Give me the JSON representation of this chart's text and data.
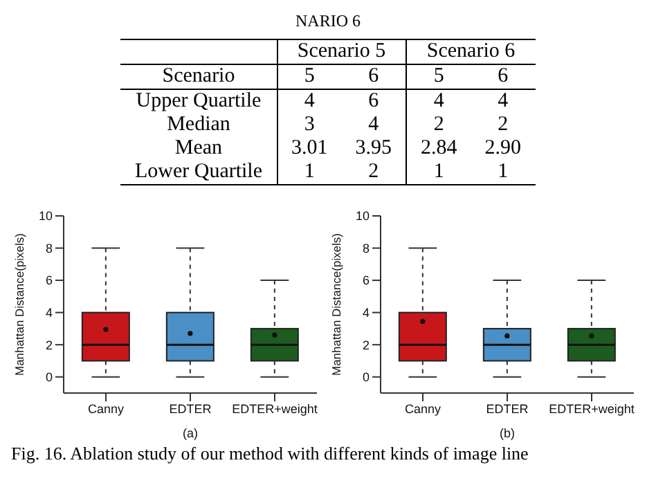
{
  "chart_data": [
    {
      "type": "other",
      "title": "NARIO 6",
      "annotations": [
        "Scenario 5",
        "Scenario 6",
        "Scenario"
      ],
      "categories": [
        "5",
        "6",
        "5",
        "6"
      ],
      "y_categories": [
        "Upper Quartile",
        "Median",
        "Mean",
        "Lower Quartile"
      ],
      "cell_labels": [
        [
          "4",
          "6",
          "4",
          "4"
        ],
        [
          "3",
          "4",
          "2",
          "2"
        ],
        [
          "3.01",
          "3.95",
          "2.84",
          "2.90"
        ],
        [
          "1",
          "2",
          "1",
          "1"
        ]
      ]
    },
    {
      "type": "box",
      "categories": [
        "Canny",
        "EDTER",
        "EDTER+weight"
      ],
      "colors": [
        "#c8171b",
        "#4a8fc6",
        "#1d5c20"
      ],
      "ylabel": "Manhattan Distance(pixels)",
      "xlabel": "(a)",
      "ylim": [
        -1,
        10
      ],
      "yticks": [
        0,
        2,
        4,
        6,
        8,
        10
      ],
      "grid": false,
      "boxes": [
        {
          "low": 0,
          "q1": 1,
          "median": 2,
          "q3": 4,
          "high": 8,
          "mean": 2.95
        },
        {
          "low": 0,
          "q1": 1,
          "median": 2,
          "q3": 4,
          "high": 8,
          "mean": 2.7
        },
        {
          "low": 0,
          "q1": 1,
          "median": 2,
          "q3": 3,
          "high": 6,
          "mean": 2.6
        }
      ]
    },
    {
      "type": "box",
      "categories": [
        "Canny",
        "EDTER",
        "EDTER+weight"
      ],
      "colors": [
        "#c8171b",
        "#4a8fc6",
        "#1d5c20"
      ],
      "ylabel": "Manhattan Distance(pixels)",
      "xlabel": "(b)",
      "ylim": [
        -1,
        10
      ],
      "yticks": [
        0,
        2,
        4,
        6,
        8,
        10
      ],
      "grid": false,
      "boxes": [
        {
          "low": 0,
          "q1": 1,
          "median": 2,
          "q3": 4,
          "high": 8,
          "mean": 3.45
        },
        {
          "low": 0,
          "q1": 1,
          "median": 2,
          "q3": 3,
          "high": 6,
          "mean": 2.55
        },
        {
          "low": 0,
          "q1": 1,
          "median": 2,
          "q3": 3,
          "high": 6,
          "mean": 2.55
        }
      ],
      "annotations": [
        "Fig. 16.   Ablation study of our method with different kinds of image line"
      ]
    }
  ]
}
